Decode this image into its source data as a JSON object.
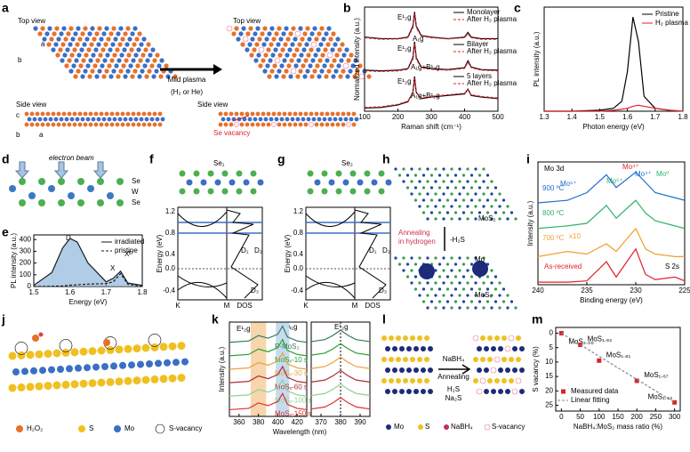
{
  "panels": [
    {
      "label": "a",
      "texts": [
        "Top view",
        "Top view",
        "Mild plasma",
        "(H₂ or He)",
        "Side view",
        "Side view",
        "Se vacancy",
        "b",
        "a",
        "c",
        "b",
        "a"
      ]
    },
    {
      "label": "b",
      "texts": [
        "E¹₂g",
        "A₁g",
        "E¹₂g",
        "A₁g+B¹₂g",
        "E¹₂g",
        "A₁g+B¹₂g"
      ]
    },
    {
      "label": "c",
      "texts": []
    },
    {
      "label": "d",
      "texts": [
        "electron beam",
        "Se",
        "W",
        "Se"
      ]
    },
    {
      "label": "e",
      "texts": [
        "D",
        "X",
        "Xᴰ"
      ]
    },
    {
      "label": "f",
      "texts": [
        "Se₁",
        "D₁",
        "D₂",
        "D₃",
        "K",
        "M",
        "DOS",
        "1.2",
        "0.8",
        "0.4",
        "0.0",
        "-0.4",
        "Energy (eV)"
      ]
    },
    {
      "label": "g",
      "texts": [
        "Se₂",
        "D₁",
        "D₂",
        "D₃",
        "K",
        "M",
        "DOS",
        "1.2",
        "0.8",
        "0.4",
        "0.0",
        "-0.4",
        "Energy (eV)"
      ]
    },
    {
      "label": "h",
      "texts": [
        "MoS₂",
        "Annealing",
        "in hydrogen",
        "-H₂S",
        "Mo",
        "MoSₓ"
      ]
    },
    {
      "label": "i",
      "texts": [
        "Mo 3d",
        "900 ºC",
        "800 ºC",
        "700 ºC",
        "x10",
        "As-received",
        "Mo⁴⁺",
        "Mo⁶⁺",
        "Mo⁵⁺",
        "Mo⁴⁺",
        "Mo⁰",
        "S 2s"
      ]
    },
    {
      "label": "j",
      "texts": [
        "H₂O₂",
        "S",
        "Mo",
        "S-vacancy"
      ]
    },
    {
      "label": "k",
      "texts": [
        "E¹₂g",
        "A₁g",
        "E¹₂g"
      ]
    },
    {
      "label": "l",
      "texts": [
        "NaBH₄",
        "Annealing",
        "H₂S",
        "Na₂S",
        "Mo",
        "S",
        "NaBH₄",
        "S-vacancy"
      ]
    },
    {
      "label": "m",
      "texts": []
    }
  ],
  "chart_data": [
    {
      "type": "line",
      "xlabel": "Raman shift (cm⁻¹)",
      "ylabel": "Normalized intensity (a.u.)",
      "xlim": [
        100,
        500
      ],
      "xticks": [
        100,
        200,
        300,
        400,
        500
      ],
      "ylim": [
        0,
        3.3
      ],
      "x": [
        100,
        150,
        200,
        230,
        245,
        250,
        255,
        270,
        300,
        350,
        400,
        410,
        420,
        450,
        500
      ],
      "series": [
        {
          "name": "Monolayer",
          "color": "#000000",
          "values": [
            2.35,
            2.3,
            2.3,
            2.35,
            2.7,
            3.15,
            2.7,
            2.4,
            2.35,
            2.3,
            2.35,
            2.5,
            2.35,
            2.3,
            2.3
          ]
        },
        {
          "name": "After H₂ plasma",
          "color": "#e0202a",
          "dash": true,
          "values": [
            2.33,
            2.28,
            2.29,
            2.33,
            2.65,
            3.1,
            2.65,
            2.38,
            2.33,
            2.29,
            2.33,
            2.45,
            2.33,
            2.28,
            2.28
          ]
        },
        {
          "name": "Bilayer",
          "color": "#000000",
          "values": [
            1.3,
            1.28,
            1.3,
            1.35,
            1.7,
            2.2,
            1.7,
            1.4,
            1.35,
            1.32,
            1.38,
            1.6,
            1.4,
            1.32,
            1.3
          ]
        },
        {
          "name": "After H₂ plasma",
          "color": "#e0202a",
          "dash": true,
          "values": [
            1.28,
            1.26,
            1.28,
            1.33,
            1.65,
            2.15,
            1.65,
            1.38,
            1.33,
            1.3,
            1.36,
            1.55,
            1.38,
            1.3,
            1.28
          ]
        },
        {
          "name": "5 layers",
          "color": "#000000",
          "values": [
            0.1,
            0.12,
            0.2,
            0.3,
            0.6,
            1.1,
            0.6,
            0.4,
            0.45,
            0.5,
            0.55,
            0.7,
            0.5,
            0.45,
            0.4
          ]
        },
        {
          "name": "After H₂ plasma",
          "color": "#e0202a",
          "dash": true,
          "values": [
            0.12,
            0.14,
            0.22,
            0.32,
            0.58,
            1.05,
            0.58,
            0.42,
            0.47,
            0.52,
            0.57,
            0.68,
            0.52,
            0.47,
            0.42
          ]
        }
      ]
    },
    {
      "type": "line",
      "xlabel": "Photon energy (eV)",
      "ylabel": "PL intensity (a.u.)",
      "xlim": [
        1.3,
        1.8
      ],
      "xticks": [
        1.3,
        1.4,
        1.5,
        1.6,
        1.7,
        1.8
      ],
      "ylim": [
        0,
        1.05
      ],
      "x": [
        1.3,
        1.4,
        1.5,
        1.55,
        1.58,
        1.6,
        1.62,
        1.64,
        1.66,
        1.7,
        1.75,
        1.8
      ],
      "series": [
        {
          "name": "Pristine",
          "color": "#000000",
          "values": [
            0,
            0,
            0.01,
            0.03,
            0.1,
            0.4,
            0.95,
            0.7,
            0.15,
            0.03,
            0.01,
            0
          ]
        },
        {
          "name": "H₂ plasma",
          "color": "#e0202a",
          "values": [
            0,
            0,
            0,
            0.01,
            0.02,
            0.03,
            0.05,
            0.06,
            0.05,
            0.03,
            0.01,
            0
          ]
        }
      ]
    },
    {
      "type": "line",
      "xlabel": "Energy (eV)",
      "ylabel": "PL intensity (a.u.)",
      "xlim": [
        1.5,
        1.8
      ],
      "xticks": [
        1.5,
        1.6,
        1.7,
        1.8
      ],
      "ylim": [
        0,
        440
      ],
      "yticks": [
        0,
        100,
        200,
        300,
        400
      ],
      "x": [
        1.5,
        1.55,
        1.58,
        1.6,
        1.62,
        1.65,
        1.7,
        1.72,
        1.74,
        1.76,
        1.8
      ],
      "series": [
        {
          "name": "irradiated",
          "color": "#1a1a1a",
          "fill": "#8fb6dc",
          "values": [
            10,
            120,
            330,
            410,
            380,
            200,
            40,
            70,
            130,
            30,
            10
          ]
        },
        {
          "name": "pristine",
          "color": "#1a1a1a",
          "dash": true,
          "values": [
            0,
            2,
            5,
            10,
            15,
            20,
            25,
            40,
            110,
            20,
            0
          ]
        }
      ]
    },
    {
      "type": "line",
      "xlabel": "Binding energy (eV)",
      "ylabel": "Intensity (a.u.)",
      "xlim": [
        240,
        225
      ],
      "xticks": [
        240,
        235,
        230,
        225
      ],
      "ylim": [
        0,
        4.8
      ],
      "x": [
        240,
        237,
        235,
        233,
        232,
        230,
        229,
        228,
        226,
        225
      ],
      "series": [
        {
          "color": "#1f6fd0",
          "values": [
            3.2,
            3.3,
            3.6,
            4.3,
            3.8,
            4.4,
            4.0,
            3.6,
            3.4,
            3.3
          ]
        },
        {
          "color": "#2fb36a",
          "values": [
            2.2,
            2.3,
            2.4,
            3.1,
            2.6,
            3.3,
            2.8,
            2.5,
            2.3,
            2.2
          ]
        },
        {
          "color": "#f0a030",
          "values": [
            1.1,
            1.3,
            1.2,
            1.6,
            1.3,
            2.2,
            1.4,
            1.2,
            1.1,
            1.1
          ]
        },
        {
          "color": "#e0202a",
          "values": [
            0.1,
            0.1,
            0.15,
            0.9,
            0.3,
            1.4,
            0.4,
            0.2,
            0.3,
            0.15
          ]
        }
      ]
    },
    {
      "type": "line",
      "xlabel": "Wavelength (nm)",
      "ylabel": "Intensity (a.u.)",
      "xlim": [
        350,
        430
      ],
      "xticks": [
        360,
        380,
        400,
        420
      ],
      "ylim": [
        0,
        7
      ],
      "bands": [
        {
          "range": [
            372,
            388
          ],
          "color": "#f7d6ad"
        },
        {
          "range": [
            398,
            412
          ],
          "color": "#c5dcef"
        }
      ],
      "x": [
        350,
        370,
        380,
        390,
        400,
        405,
        410,
        420,
        430
      ],
      "series": [
        {
          "name": "P-MoS₂",
          "color": "#3a7a5a",
          "values": [
            5.5,
            5.6,
            6.0,
            5.8,
            6.1,
            6.7,
            5.9,
            5.6,
            5.5
          ]
        },
        {
          "name": "MoSₓ-10 s",
          "color": "#2ca02c",
          "values": [
            4.5,
            4.6,
            5.0,
            4.8,
            5.1,
            5.7,
            4.9,
            4.6,
            4.5
          ]
        },
        {
          "name": "MoSₓ-30 s",
          "color": "#e8a33d",
          "values": [
            3.5,
            3.6,
            4.0,
            3.8,
            4.1,
            4.7,
            3.9,
            3.6,
            3.5
          ]
        },
        {
          "name": "MoSₓ-60 s",
          "color": "#b03030",
          "values": [
            2.5,
            2.6,
            3.0,
            2.8,
            3.1,
            3.7,
            2.9,
            2.6,
            2.5
          ]
        },
        {
          "name": "MoSₓ-100 s",
          "color": "#8fd18f",
          "values": [
            1.5,
            1.6,
            2.0,
            1.8,
            2.1,
            2.7,
            1.9,
            1.6,
            1.5
          ]
        },
        {
          "name": "MoSₓ-150 s",
          "color": "#e03030",
          "values": [
            0.5,
            0.6,
            1.0,
            0.8,
            1.1,
            1.7,
            0.9,
            0.6,
            0.5
          ]
        }
      ]
    },
    {
      "type": "line",
      "xlim": [
        365,
        395
      ],
      "xticks": [
        370,
        380,
        390
      ],
      "ylim": [
        0,
        7
      ],
      "vline": 380,
      "x": [
        365,
        372,
        376,
        380,
        384,
        388,
        395
      ],
      "series": [
        {
          "color": "#3a7a5a",
          "values": [
            5.55,
            5.7,
            6.0,
            6.4,
            6.0,
            5.7,
            5.55
          ]
        },
        {
          "color": "#2ca02c",
          "values": [
            4.55,
            4.7,
            5.0,
            5.4,
            5.0,
            4.7,
            4.55
          ]
        },
        {
          "color": "#e8a33d",
          "values": [
            3.55,
            3.7,
            4.0,
            4.4,
            4.0,
            3.7,
            3.55
          ]
        },
        {
          "color": "#b03030",
          "values": [
            2.55,
            2.7,
            3.0,
            3.4,
            3.0,
            2.7,
            2.55
          ]
        },
        {
          "color": "#8fd18f",
          "values": [
            1.55,
            1.7,
            2.0,
            2.4,
            2.0,
            1.7,
            1.55
          ]
        },
        {
          "color": "#e03030",
          "values": [
            0.55,
            0.7,
            1.0,
            1.4,
            1.0,
            0.7,
            0.55
          ]
        }
      ]
    },
    {
      "type": "scatter",
      "xlabel": "NaBH₄:MoS₂ mass ratio (%)",
      "ylabel": "S vacancy (%)",
      "xlim": [
        -15,
        315
      ],
      "xticks": [
        0,
        50,
        100,
        150,
        200,
        250,
        300
      ],
      "ylim": [
        27,
        -2
      ],
      "yticks": [
        0,
        5,
        10,
        15,
        20,
        25
      ],
      "series": [
        {
          "name": "Measured data",
          "color": "#d62728",
          "mode": "markers",
          "x": [
            0,
            50,
            100,
            200,
            300
          ],
          "values": [
            0,
            4,
            9.5,
            16.5,
            24
          ],
          "point_labels": [
            "MoS₂.₀₀",
            "MoS₁.₉₂",
            "MoS₁.₈₁",
            "MoS₁.₆₇",
            "MoS₁.₅₂"
          ]
        },
        {
          "name": "Linear fitting",
          "color": "#7a8aa0",
          "dash": true,
          "x": [
            0,
            300
          ],
          "values": [
            0,
            24
          ]
        }
      ]
    }
  ]
}
